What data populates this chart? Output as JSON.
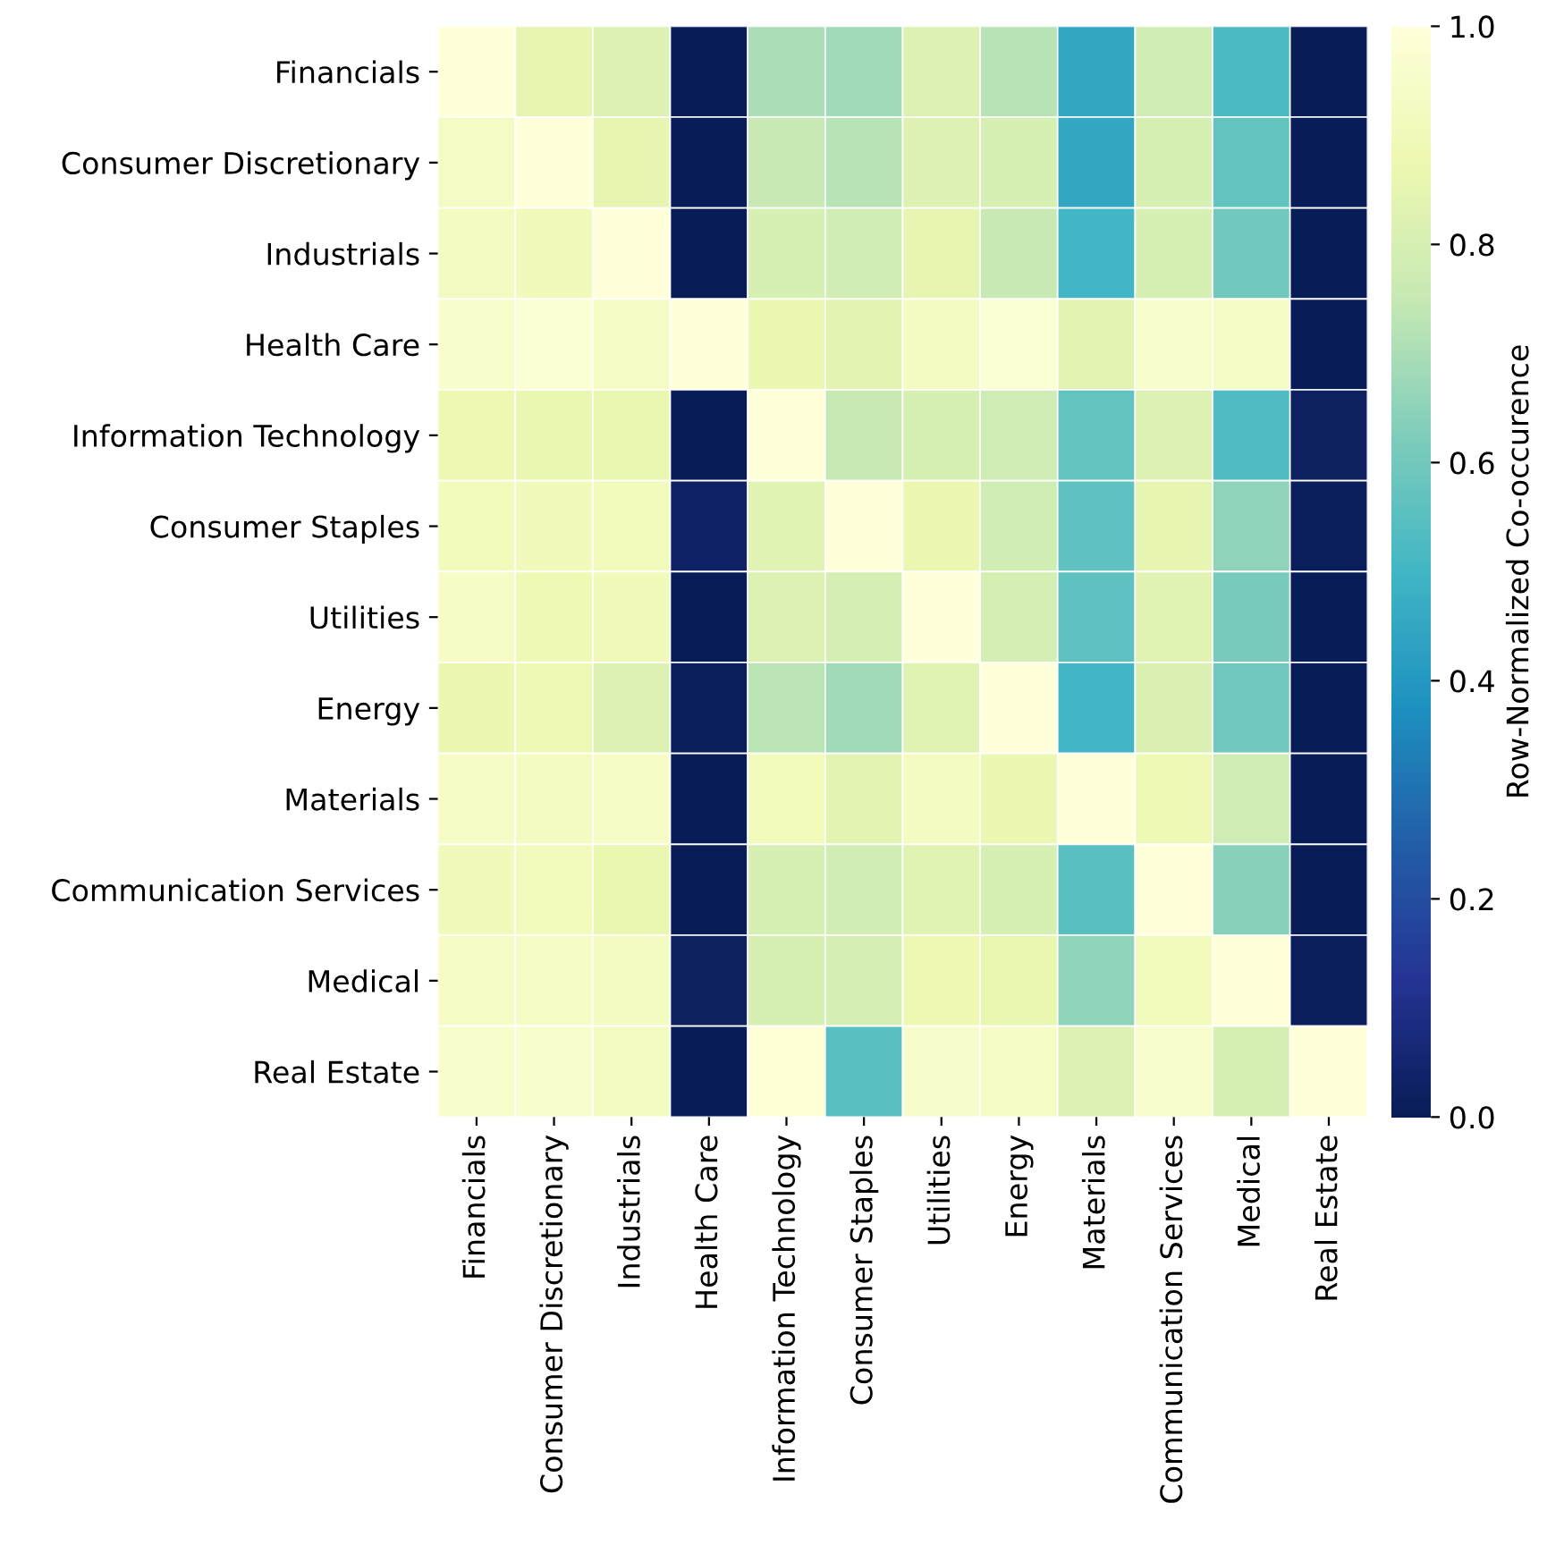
{
  "chart_data": {
    "type": "heatmap",
    "categories": [
      "Financials",
      "Consumer Discretionary",
      "Industrials",
      "Health Care",
      "Information Technology",
      "Consumer Staples",
      "Utilities",
      "Energy",
      "Materials",
      "Communication Services",
      "Medical",
      "Real Estate"
    ],
    "y_categories": [
      "Financials",
      "Consumer Discretionary",
      "Industrials",
      "Health Care",
      "Information Technology",
      "Consumer Staples",
      "Utilities",
      "Energy",
      "Materials",
      "Communication Services",
      "Medical",
      "Real Estate"
    ],
    "cells": [
      [
        1.0,
        0.85,
        0.82,
        0.0,
        0.7,
        0.68,
        0.82,
        0.72,
        0.45,
        0.78,
        0.52,
        0.0
      ],
      [
        0.93,
        1.0,
        0.85,
        0.0,
        0.75,
        0.72,
        0.82,
        0.8,
        0.45,
        0.8,
        0.57,
        0.0
      ],
      [
        0.92,
        0.9,
        1.0,
        0.0,
        0.8,
        0.78,
        0.85,
        0.75,
        0.5,
        0.8,
        0.6,
        0.0
      ],
      [
        0.96,
        0.98,
        0.93,
        1.0,
        0.87,
        0.84,
        0.92,
        0.98,
        0.84,
        0.96,
        0.93,
        0.0
      ],
      [
        0.88,
        0.86,
        0.86,
        0.0,
        1.0,
        0.75,
        0.8,
        0.77,
        0.57,
        0.82,
        0.53,
        0.02
      ],
      [
        0.91,
        0.9,
        0.91,
        0.03,
        0.83,
        1.0,
        0.87,
        0.78,
        0.56,
        0.85,
        0.65,
        0.01
      ],
      [
        0.94,
        0.89,
        0.9,
        0.0,
        0.82,
        0.79,
        1.0,
        0.79,
        0.56,
        0.83,
        0.61,
        0.0
      ],
      [
        0.87,
        0.89,
        0.82,
        0.01,
        0.73,
        0.68,
        0.83,
        1.0,
        0.5,
        0.81,
        0.6,
        0.0
      ],
      [
        0.94,
        0.92,
        0.94,
        0.0,
        0.91,
        0.84,
        0.92,
        0.87,
        1.0,
        0.89,
        0.77,
        0.0
      ],
      [
        0.9,
        0.91,
        0.86,
        0.0,
        0.8,
        0.78,
        0.83,
        0.8,
        0.55,
        1.0,
        0.64,
        0.0
      ],
      [
        0.94,
        0.94,
        0.92,
        0.02,
        0.8,
        0.79,
        0.88,
        0.86,
        0.65,
        0.91,
        1.0,
        0.01
      ],
      [
        0.96,
        0.96,
        0.92,
        0.0,
        0.99,
        0.55,
        0.95,
        0.94,
        0.82,
        0.96,
        0.8,
        1.0
      ]
    ],
    "clim": [
      0,
      1
    ],
    "cticks": [
      {
        "value": 0,
        "label": "0.0"
      },
      {
        "value": 0.2,
        "label": "0.2"
      },
      {
        "value": 0.4,
        "label": "0.4"
      },
      {
        "value": 0.6,
        "label": "0.6"
      },
      {
        "value": 0.8,
        "label": "0.8"
      },
      {
        "value": 1,
        "label": "1.0"
      }
    ],
    "clabel": "Row-Normalized Co-occurence"
  }
}
